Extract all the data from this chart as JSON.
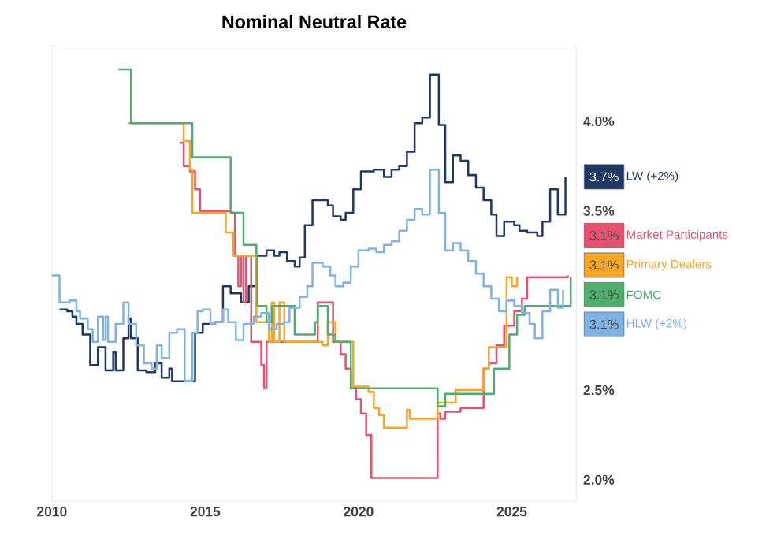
{
  "chart_data": {
    "type": "step",
    "title": "Nominal Neutral Rate",
    "xlim": [
      2010,
      2027.1
    ],
    "xticks": [
      2010,
      2015,
      2020,
      2025
    ],
    "ylim": [
      1.88,
      4.42
    ],
    "yticks": [
      {
        "value": 2.0,
        "label": "2.0%"
      },
      {
        "value": 2.5,
        "label": "2.5%"
      },
      {
        "value": 3.5,
        "label": "3.5%"
      },
      {
        "value": 4.0,
        "label": "4.0%"
      }
    ],
    "legend": "right",
    "annotations": [
      "3.7%",
      "3.1%",
      "3.1%",
      "3.1%",
      "3.1%"
    ],
    "series": [
      {
        "name": "LW (+2%)",
        "color": "#1f3864",
        "x": [
          2010.25,
          2010.5,
          2010.67,
          2010.8,
          2011,
          2011.25,
          2011.5,
          2011.75,
          2012,
          2012.08,
          2012.33,
          2012.5,
          2012.58,
          2012.8,
          2013.08,
          2013.37,
          2013.58,
          2013.83,
          2013.92,
          2014.33,
          2014.67,
          2014.92,
          2015.33,
          2015.58,
          2015.83,
          2016.17,
          2016.42,
          2016.67,
          2017,
          2017.25,
          2017.42,
          2017.67,
          2017.92,
          2018.08,
          2018.25,
          2018.5,
          2019,
          2019.17,
          2019.42,
          2019.58,
          2019.83,
          2020.08,
          2020.5,
          2020.83,
          2021.08,
          2021.33,
          2021.58,
          2021.83,
          2022.08,
          2022.33,
          2022.62,
          2022.83,
          2023.08,
          2023.33,
          2023.58,
          2023.83,
          2024.08,
          2024.33,
          2024.5,
          2024.75,
          2025.08,
          2025.25,
          2025.5,
          2025.83,
          2026,
          2026.25,
          2026.5,
          2026.75
        ],
        "values": [
          2.95,
          2.94,
          2.91,
          2.87,
          2.81,
          2.64,
          2.74,
          2.61,
          2.71,
          2.61,
          2.79,
          2.9,
          2.79,
          2.61,
          2.6,
          2.65,
          2.57,
          2.62,
          2.55,
          2.55,
          2.82,
          2.87,
          2.88,
          3.08,
          3.04,
          2.99,
          3.08,
          3.25,
          3.28,
          3.25,
          3.27,
          3.22,
          3.19,
          3.24,
          3.42,
          3.56,
          3.53,
          3.47,
          3.45,
          3.49,
          3.62,
          3.72,
          3.73,
          3.69,
          3.73,
          3.75,
          3.83,
          3.99,
          4.02,
          4.26,
          3.98,
          3.66,
          3.81,
          3.78,
          3.7,
          3.63,
          3.56,
          3.48,
          3.36,
          3.44,
          3.42,
          3.39,
          3.38,
          3.36,
          3.44,
          3.62,
          3.48,
          3.69
        ]
      },
      {
        "name": "Market Participants",
        "color": "#e8506f",
        "x": [
          2014.17,
          2014.3,
          2014.5,
          2014.67,
          2014.83,
          2015.83,
          2015.97,
          2016.08,
          2016.17,
          2016.25,
          2016.33,
          2016.5,
          2016.83,
          2016.92,
          2017,
          2017.17,
          2018.67,
          2019.17,
          2019.42,
          2019.58,
          2019.75,
          2019.92,
          2020.08,
          2020.25,
          2020.42,
          2020.67,
          2022.58,
          2022.67,
          2022.83,
          2023,
          2023.33,
          2024.08,
          2024.25,
          2024.5,
          2024.75,
          2025.08,
          2025.33,
          2025.5,
          2026.83
        ],
        "values": [
          3.88,
          3.75,
          3.72,
          3.62,
          3.5,
          3.49,
          3.25,
          3.08,
          3.25,
          2.99,
          3.25,
          2.77,
          2.64,
          2.51,
          2.77,
          2.77,
          2.99,
          2.77,
          2.7,
          2.62,
          2.51,
          2.45,
          2.37,
          2.25,
          2.01,
          2.01,
          2.37,
          2.34,
          2.38,
          2.38,
          2.4,
          2.62,
          2.65,
          2.75,
          2.86,
          2.94,
          3.01,
          3.13,
          3.14
        ]
      },
      {
        "name": "Primary Dealers",
        "color": "#f5a623",
        "x": [
          2012.5,
          2014.3,
          2014.5,
          2014.58,
          2015.67,
          2015.75,
          2015.92,
          2016.67,
          2016.75,
          2017.08,
          2017.17,
          2017.25,
          2017.42,
          2017.58,
          2017.75,
          2018.83,
          2019,
          2019.25,
          2019.67,
          2019.83,
          2020.33,
          2020.5,
          2020.67,
          2020.83,
          2021.58,
          2021.67,
          2021.83,
          2022.58,
          2023.17,
          2024.08,
          2024.25,
          2024.83,
          2025,
          2025.17
        ],
        "values": [
          3.99,
          3.89,
          3.73,
          3.49,
          3.38,
          3.38,
          3.25,
          2.88,
          2.88,
          2.77,
          2.99,
          2.77,
          2.99,
          2.77,
          2.77,
          2.75,
          2.88,
          2.77,
          2.77,
          2.52,
          2.49,
          2.4,
          2.36,
          2.29,
          2.39,
          2.34,
          2.34,
          2.43,
          2.5,
          2.62,
          2.74,
          3.13,
          3.08,
          3.13
        ]
      },
      {
        "name": "FOMC",
        "color": "#4caf6e",
        "x": [
          2012.17,
          2012.58,
          2014.58,
          2015.83,
          2016.25,
          2016.67,
          2016.7,
          2016.92,
          2017,
          2017.17,
          2017.92,
          2018.58,
          2018.67,
          2019,
          2019.25,
          2019.67,
          2019.75,
          2022.58,
          2022.83,
          2024.42,
          2024.92,
          2025.17,
          2025.42,
          2026.92
        ],
        "values": [
          4.29,
          3.99,
          3.8,
          3.49,
          3.31,
          3.25,
          2.97,
          2.97,
          2.88,
          2.97,
          2.81,
          2.88,
          2.97,
          2.81,
          2.77,
          2.77,
          2.51,
          2.41,
          2.48,
          2.62,
          2.81,
          2.92,
          2.97,
          3.13
        ]
      },
      {
        "name": "HLW (+2%)",
        "color": "#7fb2e5",
        "x": [
          2010,
          2010.25,
          2010.58,
          2010.8,
          2010.92,
          2011.17,
          2011.33,
          2011.5,
          2011.67,
          2011.75,
          2011.83,
          2012.08,
          2012.33,
          2012.5,
          2012.75,
          2013,
          2013.25,
          2013.42,
          2013.58,
          2013.83,
          2014.08,
          2014.33,
          2014.58,
          2014.75,
          2014.92,
          2015.17,
          2015.33,
          2015.58,
          2015.75,
          2016,
          2016.25,
          2016.58,
          2016.83,
          2017.08,
          2017.33,
          2017.58,
          2017.75,
          2018.08,
          2018.33,
          2018.5,
          2018.83,
          2019.08,
          2019.25,
          2019.5,
          2019.75,
          2020,
          2020.33,
          2020.58,
          2020.83,
          2021.08,
          2021.33,
          2021.58,
          2021.83,
          2022.08,
          2022.33,
          2022.62,
          2022.83,
          2023.08,
          2023.33,
          2023.58,
          2023.83,
          2024.08,
          2024.33,
          2024.58,
          2024.83,
          2025.08,
          2025.33,
          2025.58,
          2025.75,
          2026,
          2026.25,
          2026.5,
          2026.67
        ],
        "values": [
          3.14,
          2.99,
          3.0,
          2.94,
          2.9,
          2.84,
          2.77,
          2.91,
          2.78,
          2.91,
          2.77,
          2.87,
          2.99,
          2.87,
          2.75,
          2.65,
          2.62,
          2.75,
          2.68,
          2.82,
          2.84,
          2.55,
          2.82,
          2.94,
          2.95,
          2.87,
          2.88,
          2.95,
          2.88,
          2.78,
          2.87,
          2.91,
          2.93,
          2.84,
          2.87,
          2.88,
          2.96,
          3.02,
          3.08,
          3.21,
          3.19,
          3.14,
          3.08,
          3.1,
          3.19,
          3.28,
          3.29,
          3.27,
          3.31,
          3.33,
          3.39,
          3.45,
          3.51,
          3.48,
          3.73,
          3.49,
          3.28,
          3.32,
          3.28,
          3.22,
          3.15,
          3.08,
          3.01,
          2.94,
          3.0,
          2.97,
          2.93,
          2.87,
          2.79,
          2.94,
          3.06,
          2.96,
          3.06
        ]
      }
    ]
  }
}
